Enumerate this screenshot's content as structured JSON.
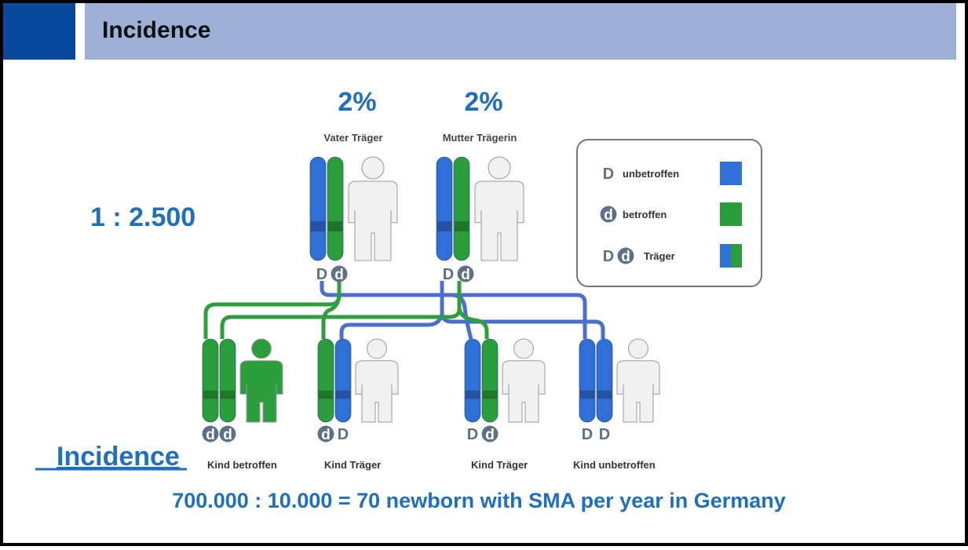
{
  "header": {
    "title": "Incidence"
  },
  "ratio": "1 : 2.500",
  "parents": [
    {
      "percent": "2%",
      "label": "Vater Träger",
      "alleles": [
        "D",
        "d"
      ]
    },
    {
      "percent": "2%",
      "label": "Mutter Trägerin",
      "alleles": [
        "D",
        "d"
      ]
    }
  ],
  "legend": [
    {
      "symbols": [
        "D"
      ],
      "label": "unbetroffen"
    },
    {
      "symbols": [
        "d"
      ],
      "label": "betroffen"
    },
    {
      "symbols": [
        "D",
        "d"
      ],
      "label": "Träger"
    }
  ],
  "children": [
    {
      "alleles": [
        "d",
        "d"
      ],
      "label": "Kind betroffen"
    },
    {
      "alleles": [
        "d",
        "D"
      ],
      "label": "Kind Träger"
    },
    {
      "alleles": [
        "D",
        "d"
      ],
      "label": "Kind Träger"
    },
    {
      "alleles": [
        "D",
        "D"
      ],
      "label": "Kind unbetroffen"
    }
  ],
  "footer": {
    "heading": "Incidence",
    "equation": "700.000 : 10.000 = 70 newborn with SMA per year in Germany"
  }
}
